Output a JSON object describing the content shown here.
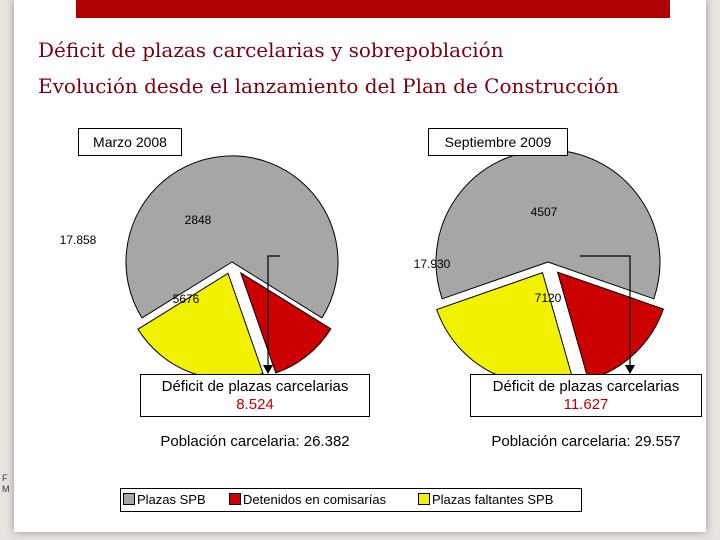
{
  "slide": {
    "title": "Déficit de plazas carcelarias y sobrepoblación",
    "subtitle": "Evolución desde el lanzamiento del Plan de Construcción",
    "edge_fragment": [
      "F",
      "M"
    ]
  },
  "colors": {
    "header_bar": "#b00000",
    "title_text": "#7a0010",
    "highlight_text": "#c00000",
    "plazas_spb": "#a6a6a6",
    "detenidos": "#cc0000",
    "faltantes": "#f2f200"
  },
  "legend": [
    {
      "label": "Plazas SPB",
      "color": "#a6a6a6"
    },
    {
      "label": "Detenidos en comisarías",
      "color": "#cc0000"
    },
    {
      "label": "Plazas faltantes SPB",
      "color": "#f2f200"
    }
  ],
  "chart_data": [
    {
      "type": "pie",
      "title": "Marzo 2008",
      "categories": [
        "Plazas SPB",
        "Detenidos en comisarías",
        "Plazas faltantes SPB"
      ],
      "values": [
        17858,
        2848,
        5676
      ],
      "value_labels": [
        "17.858",
        "2848",
        "5676"
      ],
      "exploded": [
        "Detenidos en comisarías",
        "Plazas faltantes SPB"
      ],
      "deficit_label": "Déficit de plazas carcelarias",
      "deficit_value": "8.524",
      "population_label": "Población carcelaria: 26.382"
    },
    {
      "type": "pie",
      "title": "Septiembre 2009",
      "categories": [
        "Plazas SPB",
        "Detenidos en comisarías",
        "Plazas faltantes SPB"
      ],
      "values": [
        17930,
        4507,
        7120
      ],
      "value_labels": [
        "17.930",
        "4507",
        "7120"
      ],
      "exploded": [
        "Detenidos en comisarías",
        "Plazas faltantes SPB"
      ],
      "deficit_label": "Déficit de plazas carcelarias",
      "deficit_value": "11.627",
      "population_label": "Población carcelaria: 29.557"
    }
  ]
}
